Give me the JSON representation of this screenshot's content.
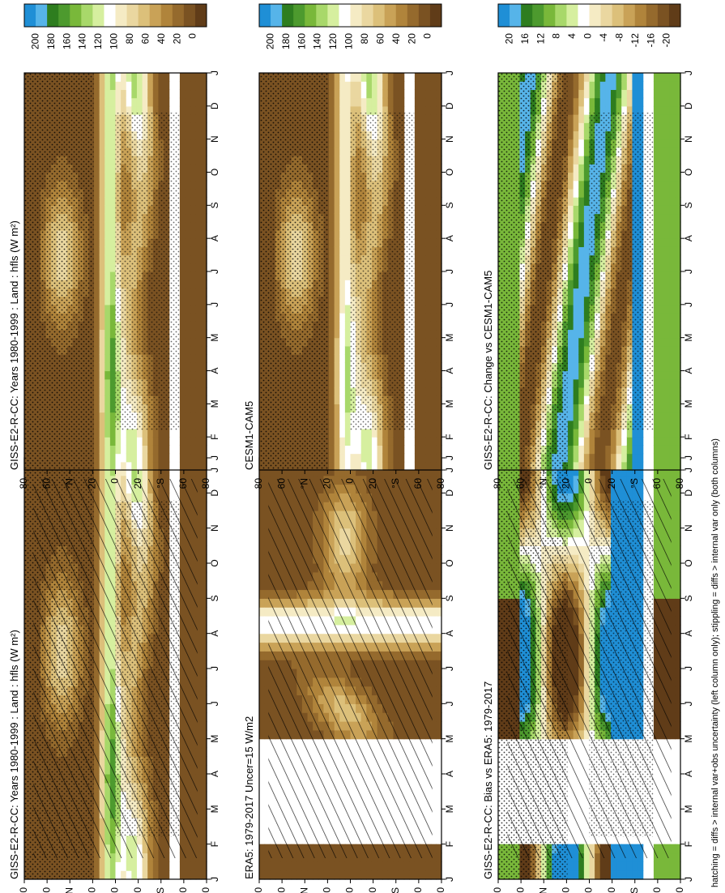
{
  "footer_note": "hatching = diffs > internal var+obs uncertainty (left column only); stippling = diffs > internal var only (both columns)",
  "months": [
    "J",
    "F",
    "M",
    "A",
    "M",
    "J",
    "J",
    "A",
    "S",
    "O",
    "N",
    "D",
    "J"
  ],
  "lat_ticks": [
    "80",
    "60",
    "°N",
    "20",
    "0",
    "20",
    "°S",
    "60",
    "80"
  ],
  "chart_data": [
    {
      "type": "heatmap",
      "panel": "left-top",
      "title": "GISS-E2-R-CC: Years 1980-1999 : Land : hfls (W m²)",
      "colorbar_ticks": [
        "200",
        "180",
        "160",
        "140",
        "120",
        "100",
        "80",
        "60",
        "40",
        "20",
        "0"
      ],
      "palette": "absolute",
      "missing_months": [],
      "pattern": [
        "stipple",
        "hatch"
      ]
    },
    {
      "type": "heatmap",
      "panel": "right-top",
      "title": "GISS-E2-R-CC: Years 1980-1999 : Land : hfls (W m²)",
      "colorbar_ticks": [
        "200",
        "180",
        "160",
        "140",
        "120",
        "100",
        "80",
        "60",
        "40",
        "20",
        "0"
      ],
      "palette": "absolute",
      "missing_months": [],
      "pattern": [
        "stipple"
      ]
    },
    {
      "type": "heatmap",
      "panel": "left-middle",
      "title": "ERA5: 1979-2017 Uncer=15 W/m2",
      "colorbar_ticks": [
        "200",
        "180",
        "160",
        "140",
        "120",
        "100",
        "80",
        "60",
        "40",
        "20",
        "0"
      ],
      "palette": "absolute",
      "missing_months": [
        "F",
        "M",
        "A"
      ],
      "pattern": [
        "hatch"
      ]
    },
    {
      "type": "heatmap",
      "panel": "right-middle",
      "title": "CESM1-CAM5",
      "colorbar_ticks": [
        "200",
        "180",
        "160",
        "140",
        "120",
        "100",
        "80",
        "60",
        "40",
        "20",
        "0"
      ],
      "palette": "absolute",
      "missing_months": [],
      "pattern": [
        "stipple"
      ]
    },
    {
      "type": "heatmap",
      "panel": "left-bottom",
      "title": "GISS-E2-R-CC: Bias vs ERA5: 1979-2017",
      "colorbar_ticks": [
        "20",
        "16",
        "12",
        "8",
        "4",
        "0",
        "-4",
        "-8",
        "-12",
        "-16",
        "-20"
      ],
      "palette": "difference",
      "missing_months": [
        "F",
        "M",
        "A"
      ],
      "pattern": [
        "stipple",
        "hatch"
      ]
    },
    {
      "type": "heatmap",
      "panel": "right-bottom",
      "title": "GISS-E2-R-CC: Change vs CESM1-CAM5",
      "colorbar_ticks": [
        "20",
        "16",
        "12",
        "8",
        "4",
        "0",
        "-4",
        "-8",
        "-12",
        "-16",
        "-20"
      ],
      "palette": "difference",
      "missing_months": [],
      "pattern": [
        "stipple"
      ]
    }
  ],
  "colors": {
    "absolute": [
      "#1f8fd6",
      "#56b4e9",
      "#2e7d1f",
      "#4d9a2e",
      "#79b83a",
      "#a8d86a",
      "#d6ef9f",
      "#ffffff",
      "#f5ebc4",
      "#ead7a0",
      "#dcc07a",
      "#c9a257",
      "#b0843b",
      "#956a2d",
      "#7a5222",
      "#603c18"
    ],
    "difference": [
      "#1f8fd6",
      "#56b4e9",
      "#2e7d1f",
      "#4d9a2e",
      "#79b83a",
      "#a8d86a",
      "#d6ef9f",
      "#ffffff",
      "#f5ebc4",
      "#ead7a0",
      "#dcc07a",
      "#c9a257",
      "#b0843b",
      "#956a2d",
      "#7a5222",
      "#603c18"
    ]
  }
}
